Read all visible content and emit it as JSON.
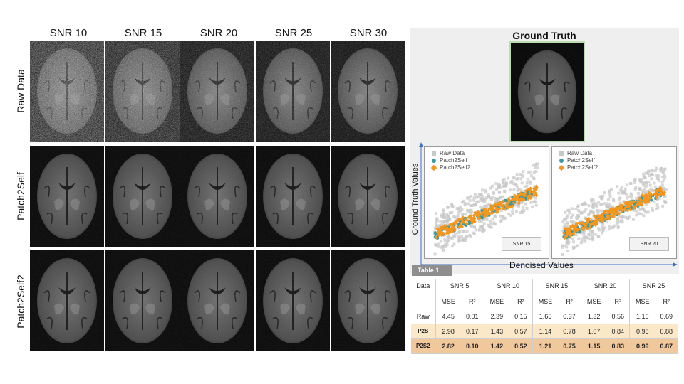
{
  "grid": {
    "columns": [
      "SNR 10",
      "SNR 15",
      "SNR 20",
      "SNR 25",
      "SNR 30"
    ],
    "rows": [
      "Raw Data",
      "Patch2Self",
      "Patch2Self2"
    ]
  },
  "ground_truth": {
    "title": "Ground Truth"
  },
  "plots": {
    "y_label": "Ground Truth Values",
    "x_label": "Denoised Values",
    "legend": [
      "Raw Data",
      "Patch2Self",
      "Patch2Self2"
    ],
    "colors": {
      "raw": "#c8c8c8",
      "p2s": "#3a9a9e",
      "p2s2": "#f5961e"
    },
    "panels": [
      {
        "snr_label": "SNR 15"
      },
      {
        "snr_label": "SNR 20"
      }
    ]
  },
  "table": {
    "tab_label": "Table 1",
    "header_first": "Data",
    "groups": [
      "SNR 5",
      "SNR 10",
      "SNR 15",
      "SNR 20",
      "SNR 25"
    ],
    "sub": [
      "MSE",
      "R²"
    ],
    "rows": [
      {
        "label": "Raw",
        "values": [
          "4.45",
          "0.01",
          "2.39",
          "0.15",
          "1.65",
          "0.37",
          "1.32",
          "0.56",
          "1.16",
          "0.69"
        ]
      },
      {
        "label": "P2S",
        "values": [
          "2.98",
          "0.17",
          "1.43",
          "0.57",
          "1.14",
          "0.78",
          "1.07",
          "0.84",
          "0.98",
          "0.88"
        ]
      },
      {
        "label": "P2S2",
        "values": [
          "2.82",
          "0.10",
          "1.42",
          "0.52",
          "1.21",
          "0.75",
          "1.15",
          "0.83",
          "0.99",
          "0.87"
        ]
      }
    ]
  }
}
